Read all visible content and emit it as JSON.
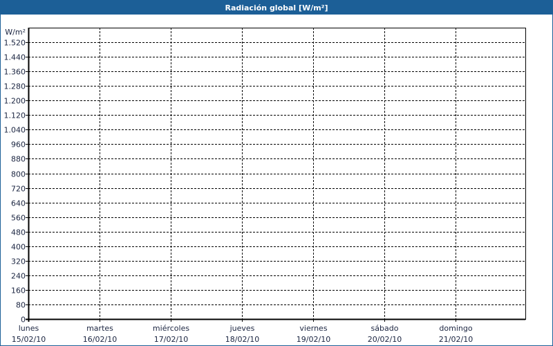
{
  "window": {
    "title": "Radiación global [W/m²]",
    "title_bar_color": "#1c5f97"
  },
  "chart_data": {
    "type": "line",
    "title": "Radiación global [W/m²]",
    "ylabel": "W/m²",
    "xlabel": "",
    "ylim": [
      0,
      1600
    ],
    "yticks": [
      0,
      80,
      160,
      240,
      320,
      400,
      480,
      560,
      640,
      720,
      800,
      880,
      960,
      1040,
      1120,
      1200,
      1280,
      1360,
      1440,
      1520
    ],
    "ytick_labels": [
      "0",
      "80",
      "160",
      "240",
      "320",
      "400",
      "480",
      "560",
      "640",
      "720",
      "800",
      "880",
      "960",
      "1.040",
      "1.120",
      "1.200",
      "1.280",
      "1.360",
      "1.440",
      "1.520"
    ],
    "xlim": [
      "15/02/10",
      "22/02/10"
    ],
    "xticks": [
      {
        "day": "lunes",
        "date": "15/02/10"
      },
      {
        "day": "martes",
        "date": "16/02/10"
      },
      {
        "day": "miércoles",
        "date": "17/02/10"
      },
      {
        "day": "jueves",
        "date": "18/02/10"
      },
      {
        "day": "viernes",
        "date": "19/02/10"
      },
      {
        "day": "sábado",
        "date": "20/02/10"
      },
      {
        "day": "domingo",
        "date": "21/02/10"
      }
    ],
    "grid": true,
    "grid_style": "dashed",
    "series": []
  }
}
